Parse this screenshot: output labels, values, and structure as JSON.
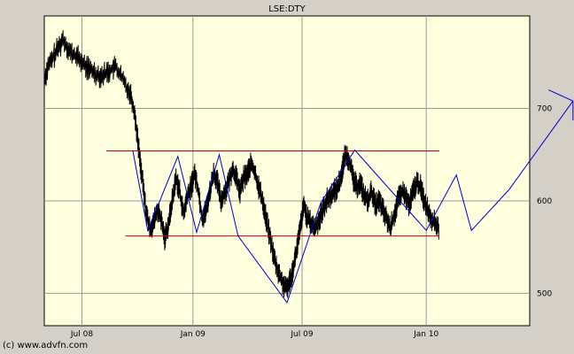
{
  "chart_data": {
    "type": "line",
    "title": "LSE:DTY",
    "x_ticks": [
      "Jul 08",
      "Jan 09",
      "Jul 09",
      "Jan 10"
    ],
    "y_ticks": [
      500,
      600,
      700
    ],
    "ylim": [
      465,
      800
    ],
    "grid": true,
    "colors": {
      "plot_bg": "#ffffe0",
      "price": "#000000",
      "support_resistance": "#cc0000",
      "trend": "#0000cc",
      "grid": "#999999"
    },
    "price_anchors": [
      [
        0,
        730
      ],
      [
        2,
        745
      ],
      [
        6,
        760
      ],
      [
        10,
        775
      ],
      [
        14,
        760
      ],
      [
        18,
        755
      ],
      [
        22,
        745
      ],
      [
        26,
        740
      ],
      [
        30,
        735
      ],
      [
        34,
        740
      ],
      [
        38,
        745
      ],
      [
        42,
        730
      ],
      [
        46,
        715
      ],
      [
        48,
        695
      ],
      [
        50,
        660
      ],
      [
        52,
        625
      ],
      [
        54,
        590
      ],
      [
        56,
        570
      ],
      [
        58,
        575
      ],
      [
        60,
        590
      ],
      [
        62,
        580
      ],
      [
        64,
        560
      ],
      [
        66,
        575
      ],
      [
        68,
        600
      ],
      [
        70,
        625
      ],
      [
        72,
        610
      ],
      [
        74,
        585
      ],
      [
        76,
        605
      ],
      [
        78,
        615
      ],
      [
        80,
        630
      ],
      [
        82,
        610
      ],
      [
        84,
        580
      ],
      [
        86,
        590
      ],
      [
        88,
        610
      ],
      [
        90,
        630
      ],
      [
        92,
        620
      ],
      [
        94,
        600
      ],
      [
        96,
        610
      ],
      [
        98,
        620
      ],
      [
        100,
        635
      ],
      [
        102,
        625
      ],
      [
        104,
        610
      ],
      [
        106,
        625
      ],
      [
        108,
        630
      ],
      [
        110,
        640
      ],
      [
        112,
        630
      ],
      [
        114,
        615
      ],
      [
        116,
        600
      ],
      [
        118,
        580
      ],
      [
        120,
        560
      ],
      [
        122,
        540
      ],
      [
        124,
        525
      ],
      [
        126,
        515
      ],
      [
        128,
        505
      ],
      [
        130,
        510
      ],
      [
        132,
        525
      ],
      [
        134,
        545
      ],
      [
        136,
        570
      ],
      [
        138,
        595
      ],
      [
        140,
        580
      ],
      [
        142,
        575
      ],
      [
        144,
        570
      ],
      [
        146,
        580
      ],
      [
        148,
        590
      ],
      [
        150,
        600
      ],
      [
        152,
        605
      ],
      [
        154,
        610
      ],
      [
        156,
        615
      ],
      [
        158,
        630
      ],
      [
        160,
        650
      ],
      [
        162,
        645
      ],
      [
        164,
        625
      ],
      [
        166,
        615
      ],
      [
        168,
        620
      ],
      [
        170,
        605
      ],
      [
        172,
        600
      ],
      [
        174,
        610
      ],
      [
        176,
        595
      ],
      [
        178,
        600
      ],
      [
        180,
        590
      ],
      [
        182,
        580
      ],
      [
        184,
        570
      ],
      [
        186,
        585
      ],
      [
        188,
        600
      ],
      [
        190,
        610
      ],
      [
        192,
        605
      ],
      [
        194,
        595
      ],
      [
        196,
        610
      ],
      [
        198,
        620
      ],
      [
        200,
        615
      ],
      [
        202,
        600
      ],
      [
        204,
        590
      ],
      [
        206,
        580
      ],
      [
        208,
        575
      ],
      [
        210,
        570
      ]
    ],
    "resistance_line": {
      "x": [
        0,
        210
      ],
      "y": 654
    },
    "support_line": {
      "x": [
        5,
        210
      ],
      "y": 562
    },
    "trend_path": [
      [
        12,
        655
      ],
      [
        20,
        568
      ],
      [
        36,
        648
      ],
      [
        46,
        566
      ],
      [
        58,
        650
      ],
      [
        68,
        562
      ],
      [
        94,
        490
      ],
      [
        112,
        598
      ],
      [
        130,
        655
      ],
      [
        168,
        568
      ],
      [
        184,
        628
      ],
      [
        192,
        568
      ],
      [
        212,
        612
      ],
      [
        246,
        708
      ]
    ],
    "arrow_start": [
      233,
      720
    ]
  },
  "credit": "(c) www.advfn.com"
}
